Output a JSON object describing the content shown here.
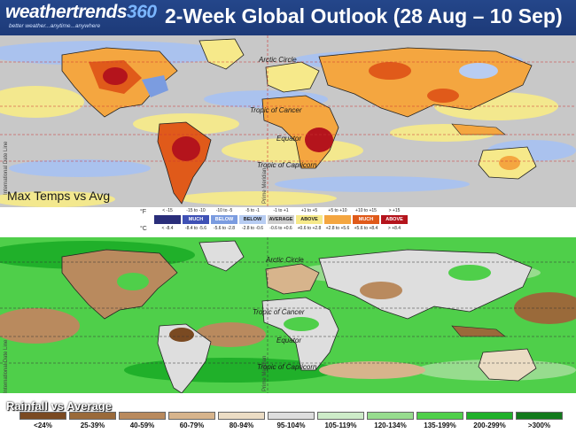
{
  "header": {
    "logo_main": "weathertrends",
    "logo_number": "360",
    "logo_tagline": "better weather...anytime...anywhere",
    "title": "2-Week Global Outlook (28 Aug – 10 Sep)",
    "background_color": "#1f3f80"
  },
  "temperature_map": {
    "caption": "Max Temps vs Avg",
    "labels": {
      "arctic_circle": "Arctic Circle",
      "tropic_cancer": "Tropic of Cancer",
      "equator": "Equator",
      "tropic_capricorn": "Tropic of Capricorn",
      "prime_meridian": "Prime Meridian",
      "date_line": "International Date Line"
    },
    "legend": {
      "unit_f": "°F",
      "unit_c": "°C",
      "categories": [
        {
          "f": "< -15",
          "name": "",
          "c": "< -8.4",
          "color": "#2a2e7a"
        },
        {
          "f": "-15 to -10",
          "name": "MUCH",
          "c": "-8.4 to -5.6",
          "color": "#3f51b5"
        },
        {
          "f": "-10 to -5",
          "name": "BELOW",
          "c": "-5.6 to -2.8",
          "color": "#7b9ce0"
        },
        {
          "f": "-5 to -1",
          "name": "BELOW",
          "c": "-2.8 to -0.6",
          "color": "#b8cdf2"
        },
        {
          "f": "-1 to +1",
          "name": "AVERAGE",
          "c": "-0.6 to +0.6",
          "color": "#cfcfcf"
        },
        {
          "f": "+1 to +5",
          "name": "ABOVE",
          "c": "+0.6 to +2.8",
          "color": "#f6e98a"
        },
        {
          "f": "+5 to +10",
          "name": "",
          "c": "+2.8 to +5.6",
          "color": "#f4a640"
        },
        {
          "f": "+10 to +15",
          "name": "MUCH",
          "c": "+5.6 to +8.4",
          "color": "#e05a1a"
        },
        {
          "f": "> +15",
          "name": "ABOVE",
          "c": "> +8.4",
          "color": "#b4141c"
        }
      ]
    }
  },
  "rainfall_map": {
    "caption": "Rainfall vs Average",
    "labels": {
      "arctic_circle": "Arctic Circle",
      "tropic_cancer": "Tropic of Cancer",
      "equator": "Equator",
      "tropic_capricorn": "Tropic of Capricorn",
      "prime_meridian": "Prime Meridian",
      "date_line": "International Date Line"
    },
    "legend": [
      {
        "label": "<24%",
        "color": "#7a4a22"
      },
      {
        "label": "25-39%",
        "color": "#9a6a3a"
      },
      {
        "label": "40-59%",
        "color": "#b98a5e"
      },
      {
        "label": "60-79%",
        "color": "#d7b48c"
      },
      {
        "label": "80-94%",
        "color": "#ebdcc4"
      },
      {
        "label": "95-104%",
        "color": "#dedede"
      },
      {
        "label": "105-119%",
        "color": "#cdebc8"
      },
      {
        "label": "120-134%",
        "color": "#97dc8e"
      },
      {
        "label": "135-199%",
        "color": "#4fcf4a"
      },
      {
        "label": "200-299%",
        "color": "#20b02a"
      },
      {
        "label": ">300%",
        "color": "#127a1c"
      }
    ]
  }
}
